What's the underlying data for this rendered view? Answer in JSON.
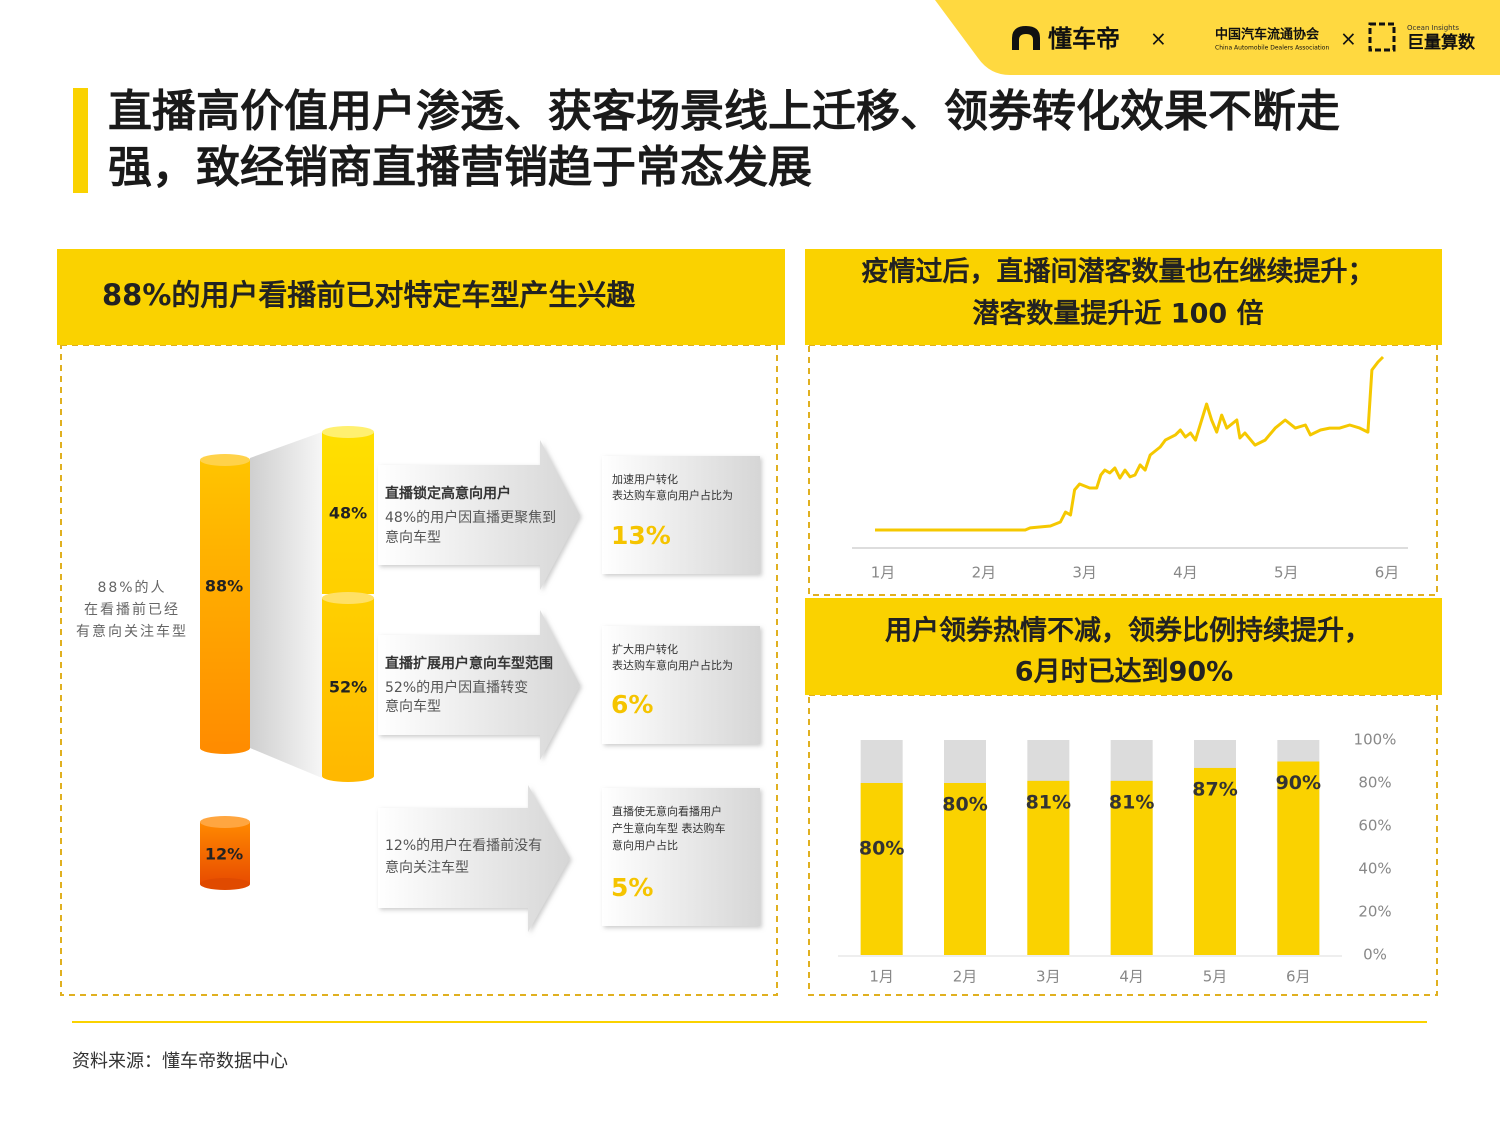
{
  "header": {
    "logos": [
      "懂车帝",
      "中国汽车流通协会",
      "China Automobile Dealers Association",
      "Ocean Insights",
      "巨量算数"
    ],
    "title": [
      "直播高价值用户渗透、获客场景线上迁移、领券转化效果不断走",
      "强，致经销商直播营销趋于常态发展"
    ]
  },
  "left_panel": {
    "title": "88%的用户看播前已对特定车型产生兴趣",
    "side_note": [
      "88%的人",
      "在看播前已经",
      "有意向关注车型"
    ],
    "total": "88%",
    "rows": [
      {
        "percent": "48%",
        "heading": "直播锁定高意向用户",
        "desc": [
          "48%的用户因直播更聚焦到",
          "意向车型"
        ],
        "box_text": [
          "加速用户转化",
          "表达购车意向用户占比为"
        ],
        "box_value": "13%"
      },
      {
        "percent": "52%",
        "heading": "直播扩展用户意向车型范围",
        "desc": [
          "52%的用户因直播转变",
          "意向车型"
        ],
        "box_text": [
          "扩大用户转化",
          "表达购车意向用户占比为"
        ],
        "box_value": "6%"
      },
      {
        "percent": "12%",
        "desc": [
          "12%的用户在看播前没有",
          "意向关注车型"
        ],
        "box_text": [
          "直播使无意向看播用户",
          "产生意向车型 表达购车",
          "意向用户占比"
        ],
        "box_value": "5%"
      }
    ]
  },
  "chart_data": [
    {
      "type": "line",
      "title": [
        "疫情过后，直播间潜客数量也在继续提升；",
        "潜客数量提升近 100 倍"
      ],
      "color": "#f5c800",
      "x": [
        0.92,
        2.41,
        2.46,
        2.66,
        2.76,
        2.81,
        2.86,
        2.9,
        2.95,
        3.05,
        3.12,
        3.16,
        3.2,
        3.25,
        3.3,
        3.35,
        3.4,
        3.45,
        3.5,
        3.55,
        3.6,
        3.65,
        3.75,
        3.8,
        3.9,
        3.95,
        4.0,
        4.05,
        4.1,
        4.21,
        4.26,
        4.31,
        4.36,
        4.41,
        4.51,
        4.54,
        4.59,
        4.69,
        4.79,
        4.89,
        4.99,
        5.09,
        5.19,
        5.24,
        5.34,
        5.43,
        5.53,
        5.63,
        5.73,
        5.81,
        5.85,
        5.91,
        5.96
      ],
      "values": [
        9.4,
        9.4,
        10.5,
        11.5,
        13.6,
        18.8,
        17.3,
        30.4,
        33.5,
        31.4,
        31.4,
        38.2,
        40.8,
        39.3,
        41.9,
        36.6,
        40.8,
        37.2,
        38.2,
        43.5,
        40.8,
        48.7,
        52.9,
        56.5,
        59.2,
        61.8,
        58.1,
        60.2,
        56.5,
        75.4,
        67.0,
        60.7,
        69.6,
        62.8,
        67.0,
        57.6,
        60.2,
        53.9,
        56.5,
        62.8,
        67.0,
        62.8,
        64.4,
        59.2,
        61.8,
        62.8,
        62.8,
        64.4,
        62.8,
        60.7,
        93.2,
        97.4,
        100
      ],
      "xlim": [
        0.7,
        6.2
      ],
      "ylim": [
        0,
        100
      ],
      "xticks": [
        {
          "value": 1,
          "label": "1月"
        },
        {
          "value": 2,
          "label": "2月"
        },
        {
          "value": 3,
          "label": "3月"
        },
        {
          "value": 4,
          "label": "4月"
        },
        {
          "value": 5,
          "label": "5月"
        },
        {
          "value": 6,
          "label": "6月"
        }
      ]
    },
    {
      "type": "bar",
      "title": [
        "用户领券热情不减，领券比例持续提升，",
        "6月时已达到90%"
      ],
      "color": "#fad200",
      "track_color": "#dcdcdc",
      "categories": [
        "1月",
        "2月",
        "3月",
        "4月",
        "5月",
        "6月"
      ],
      "values": [
        80,
        80,
        81,
        81,
        87,
        90
      ],
      "value_labels": [
        "80%",
        "80%",
        "81%",
        "81%",
        "87%",
        "90%"
      ],
      "ylim": [
        0,
        100
      ],
      "yticks": [
        {
          "value": 0,
          "label": "0%"
        },
        {
          "value": 20,
          "label": "20%"
        },
        {
          "value": 40,
          "label": "40%"
        },
        {
          "value": 60,
          "label": "60%"
        },
        {
          "value": 80,
          "label": "80%"
        },
        {
          "value": 100,
          "label": "100%"
        }
      ]
    }
  ],
  "source": "资料来源：懂车帝数据中心"
}
